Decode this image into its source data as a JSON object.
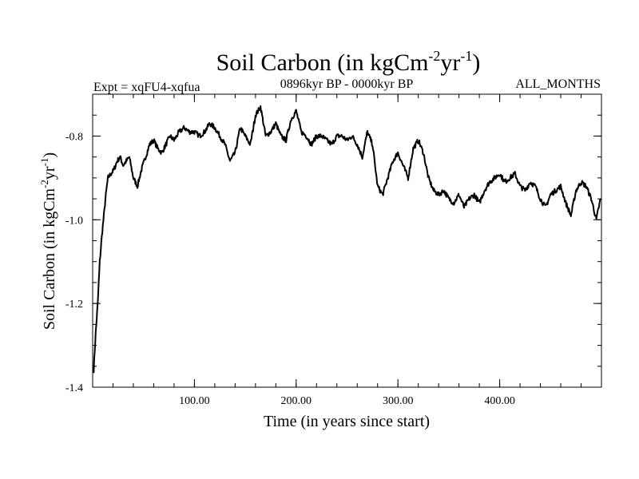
{
  "chart_data": {
    "type": "line",
    "title": {
      "main": "Soil Carbon (in kgCm",
      "sup1": "-2",
      "mid": "yr",
      "sup2": "-1",
      "end": ")"
    },
    "subtitle_left": "Expt = xqFU4-xqfua",
    "subtitle_center": "0896kyr BP - 0000kyr BP",
    "subtitle_right": "ALL_MONTHS",
    "xlabel": "Time (in years since start)",
    "ylabel": {
      "main": "Soil Carbon (in kgCm",
      "sup1": "-2",
      "mid": "yr",
      "sup2": "-1",
      "end": ")"
    },
    "xlim": [
      0,
      500
    ],
    "ylim": [
      -1.4,
      -0.7
    ],
    "xticks": [
      100,
      200,
      300,
      400
    ],
    "xtick_labels": [
      "100.00",
      "200.00",
      "300.00",
      "400.00"
    ],
    "yticks": [
      -1.4,
      -1.2,
      -1.0,
      -0.8
    ],
    "ytick_labels": [
      "-1.4",
      "-1.2",
      "-1.0",
      "-0.8"
    ],
    "series": [
      {
        "name": "Soil Carbon",
        "x": [
          1,
          3,
          5,
          7,
          9,
          11,
          13,
          15,
          18,
          21,
          24,
          27,
          30,
          33,
          36,
          40,
          44,
          48,
          52,
          56,
          60,
          64,
          68,
          72,
          76,
          80,
          85,
          90,
          95,
          100,
          105,
          110,
          115,
          120,
          125,
          130,
          135,
          140,
          145,
          150,
          155,
          160,
          165,
          170,
          175,
          180,
          185,
          190,
          195,
          200,
          205,
          210,
          215,
          220,
          225,
          230,
          235,
          240,
          245,
          250,
          255,
          260,
          265,
          270,
          275,
          280,
          285,
          290,
          295,
          300,
          305,
          310,
          315,
          320,
          325,
          330,
          335,
          340,
          345,
          350,
          355,
          360,
          365,
          370,
          375,
          380,
          385,
          390,
          395,
          400,
          405,
          410,
          415,
          420,
          425,
          430,
          435,
          440,
          445,
          450,
          455,
          460,
          465,
          470,
          475,
          480,
          485,
          490,
          495,
          499
        ],
        "y": [
          -1.36,
          -1.27,
          -1.2,
          -1.1,
          -1.04,
          -0.99,
          -0.94,
          -0.9,
          -0.89,
          -0.88,
          -0.86,
          -0.85,
          -0.87,
          -0.86,
          -0.85,
          -0.9,
          -0.92,
          -0.88,
          -0.85,
          -0.82,
          -0.81,
          -0.83,
          -0.84,
          -0.82,
          -0.8,
          -0.81,
          -0.79,
          -0.78,
          -0.79,
          -0.79,
          -0.8,
          -0.79,
          -0.77,
          -0.78,
          -0.8,
          -0.82,
          -0.86,
          -0.84,
          -0.78,
          -0.8,
          -0.82,
          -0.75,
          -0.73,
          -0.8,
          -0.79,
          -0.77,
          -0.8,
          -0.81,
          -0.76,
          -0.74,
          -0.79,
          -0.8,
          -0.82,
          -0.8,
          -0.8,
          -0.81,
          -0.82,
          -0.8,
          -0.8,
          -0.81,
          -0.8,
          -0.82,
          -0.85,
          -0.79,
          -0.82,
          -0.92,
          -0.94,
          -0.9,
          -0.86,
          -0.84,
          -0.87,
          -0.9,
          -0.83,
          -0.81,
          -0.84,
          -0.9,
          -0.93,
          -0.94,
          -0.93,
          -0.95,
          -0.96,
          -0.94,
          -0.97,
          -0.95,
          -0.94,
          -0.96,
          -0.93,
          -0.91,
          -0.9,
          -0.89,
          -0.91,
          -0.9,
          -0.89,
          -0.92,
          -0.93,
          -0.91,
          -0.92,
          -0.95,
          -0.97,
          -0.94,
          -0.93,
          -0.92,
          -0.96,
          -0.99,
          -0.93,
          -0.91,
          -0.92,
          -0.95,
          -1.0,
          -0.95
        ],
        "color": "#000000"
      }
    ]
  }
}
